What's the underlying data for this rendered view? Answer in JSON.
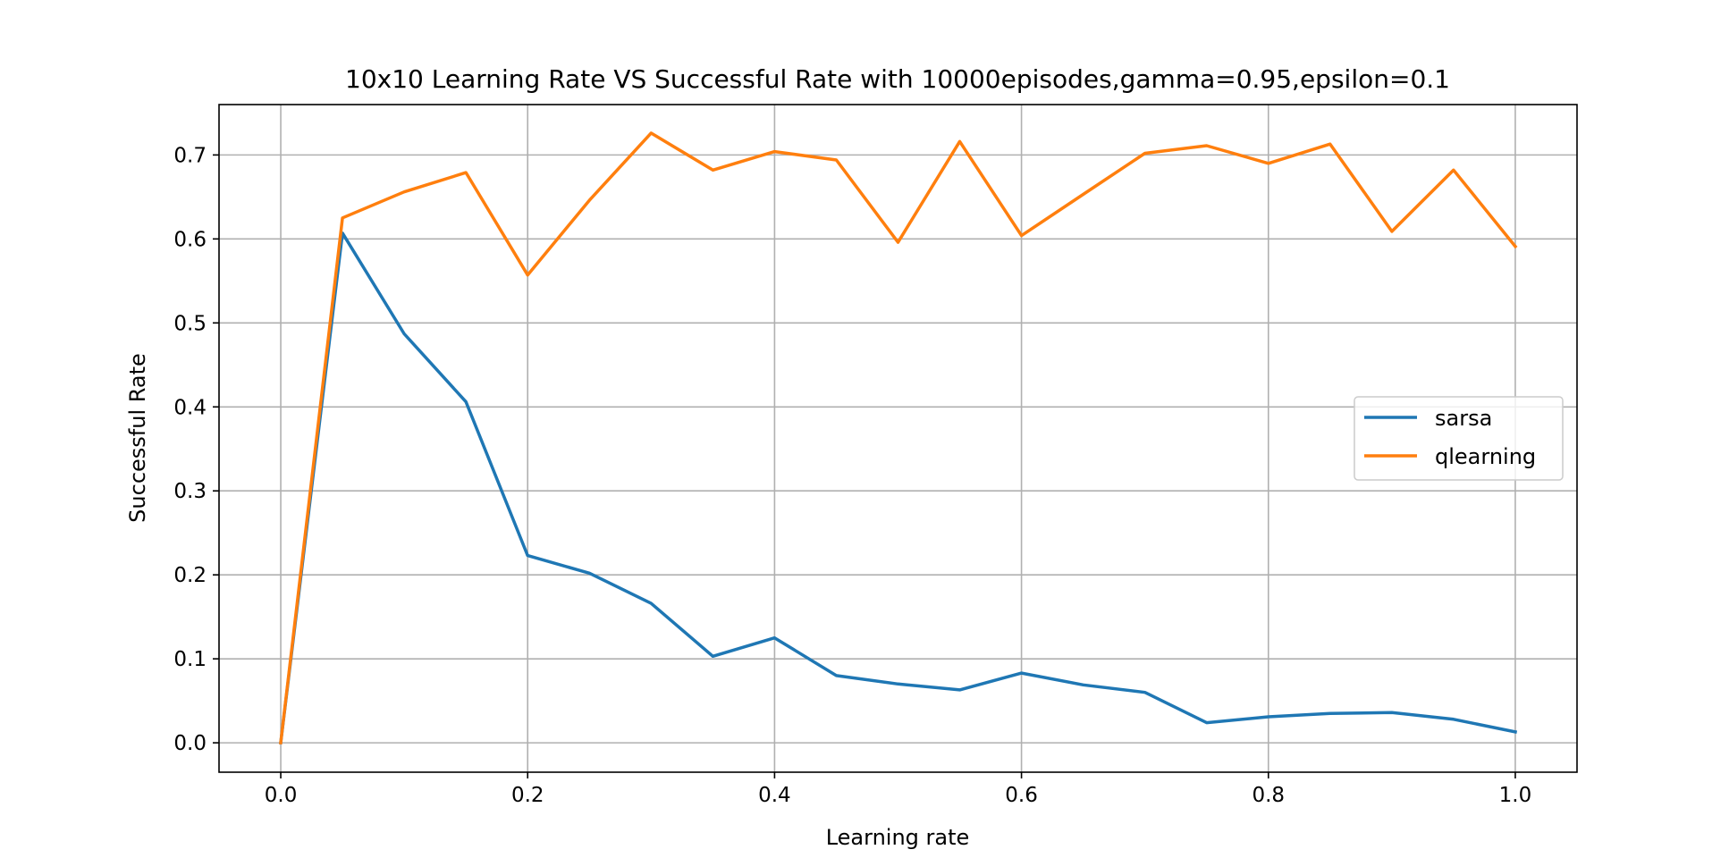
{
  "chart_data": {
    "type": "line",
    "title": "10x10 Learning Rate VS Successful Rate with 10000episodes,gamma=0.95,epsilon=0.1",
    "xlabel": "Learning rate",
    "ylabel": "Successful Rate",
    "xlim": [
      -0.05,
      1.05
    ],
    "ylim": [
      -0.035,
      0.76
    ],
    "xticks": [
      0.0,
      0.2,
      0.4,
      0.6,
      0.8,
      1.0
    ],
    "xtick_labels": [
      "0.0",
      "0.2",
      "0.4",
      "0.6",
      "0.8",
      "1.0"
    ],
    "yticks": [
      0.0,
      0.1,
      0.2,
      0.3,
      0.4,
      0.5,
      0.6,
      0.7
    ],
    "ytick_labels": [
      "0.0",
      "0.1",
      "0.2",
      "0.3",
      "0.4",
      "0.5",
      "0.6",
      "0.7"
    ],
    "grid": true,
    "legend_position": "center-right",
    "x": [
      0.0,
      0.05,
      0.1,
      0.15,
      0.2,
      0.25,
      0.3,
      0.35,
      0.4,
      0.45,
      0.5,
      0.55,
      0.6,
      0.65,
      0.7,
      0.75,
      0.8,
      0.85,
      0.9,
      0.95,
      1.0
    ],
    "series": [
      {
        "name": "sarsa",
        "color": "#1f77b4",
        "values": [
          0.0,
          0.607,
          0.487,
          0.406,
          0.223,
          0.202,
          0.166,
          0.103,
          0.125,
          0.08,
          0.07,
          0.063,
          0.083,
          0.069,
          0.06,
          0.024,
          0.031,
          0.035,
          0.036,
          0.028,
          0.013
        ]
      },
      {
        "name": "qlearning",
        "color": "#ff7f0e",
        "values": [
          0.0,
          0.625,
          0.656,
          0.679,
          0.557,
          0.646,
          0.726,
          0.682,
          0.704,
          0.694,
          0.596,
          0.716,
          0.604,
          0.653,
          0.702,
          0.711,
          0.69,
          0.713,
          0.609,
          0.682,
          0.591
        ]
      }
    ]
  }
}
